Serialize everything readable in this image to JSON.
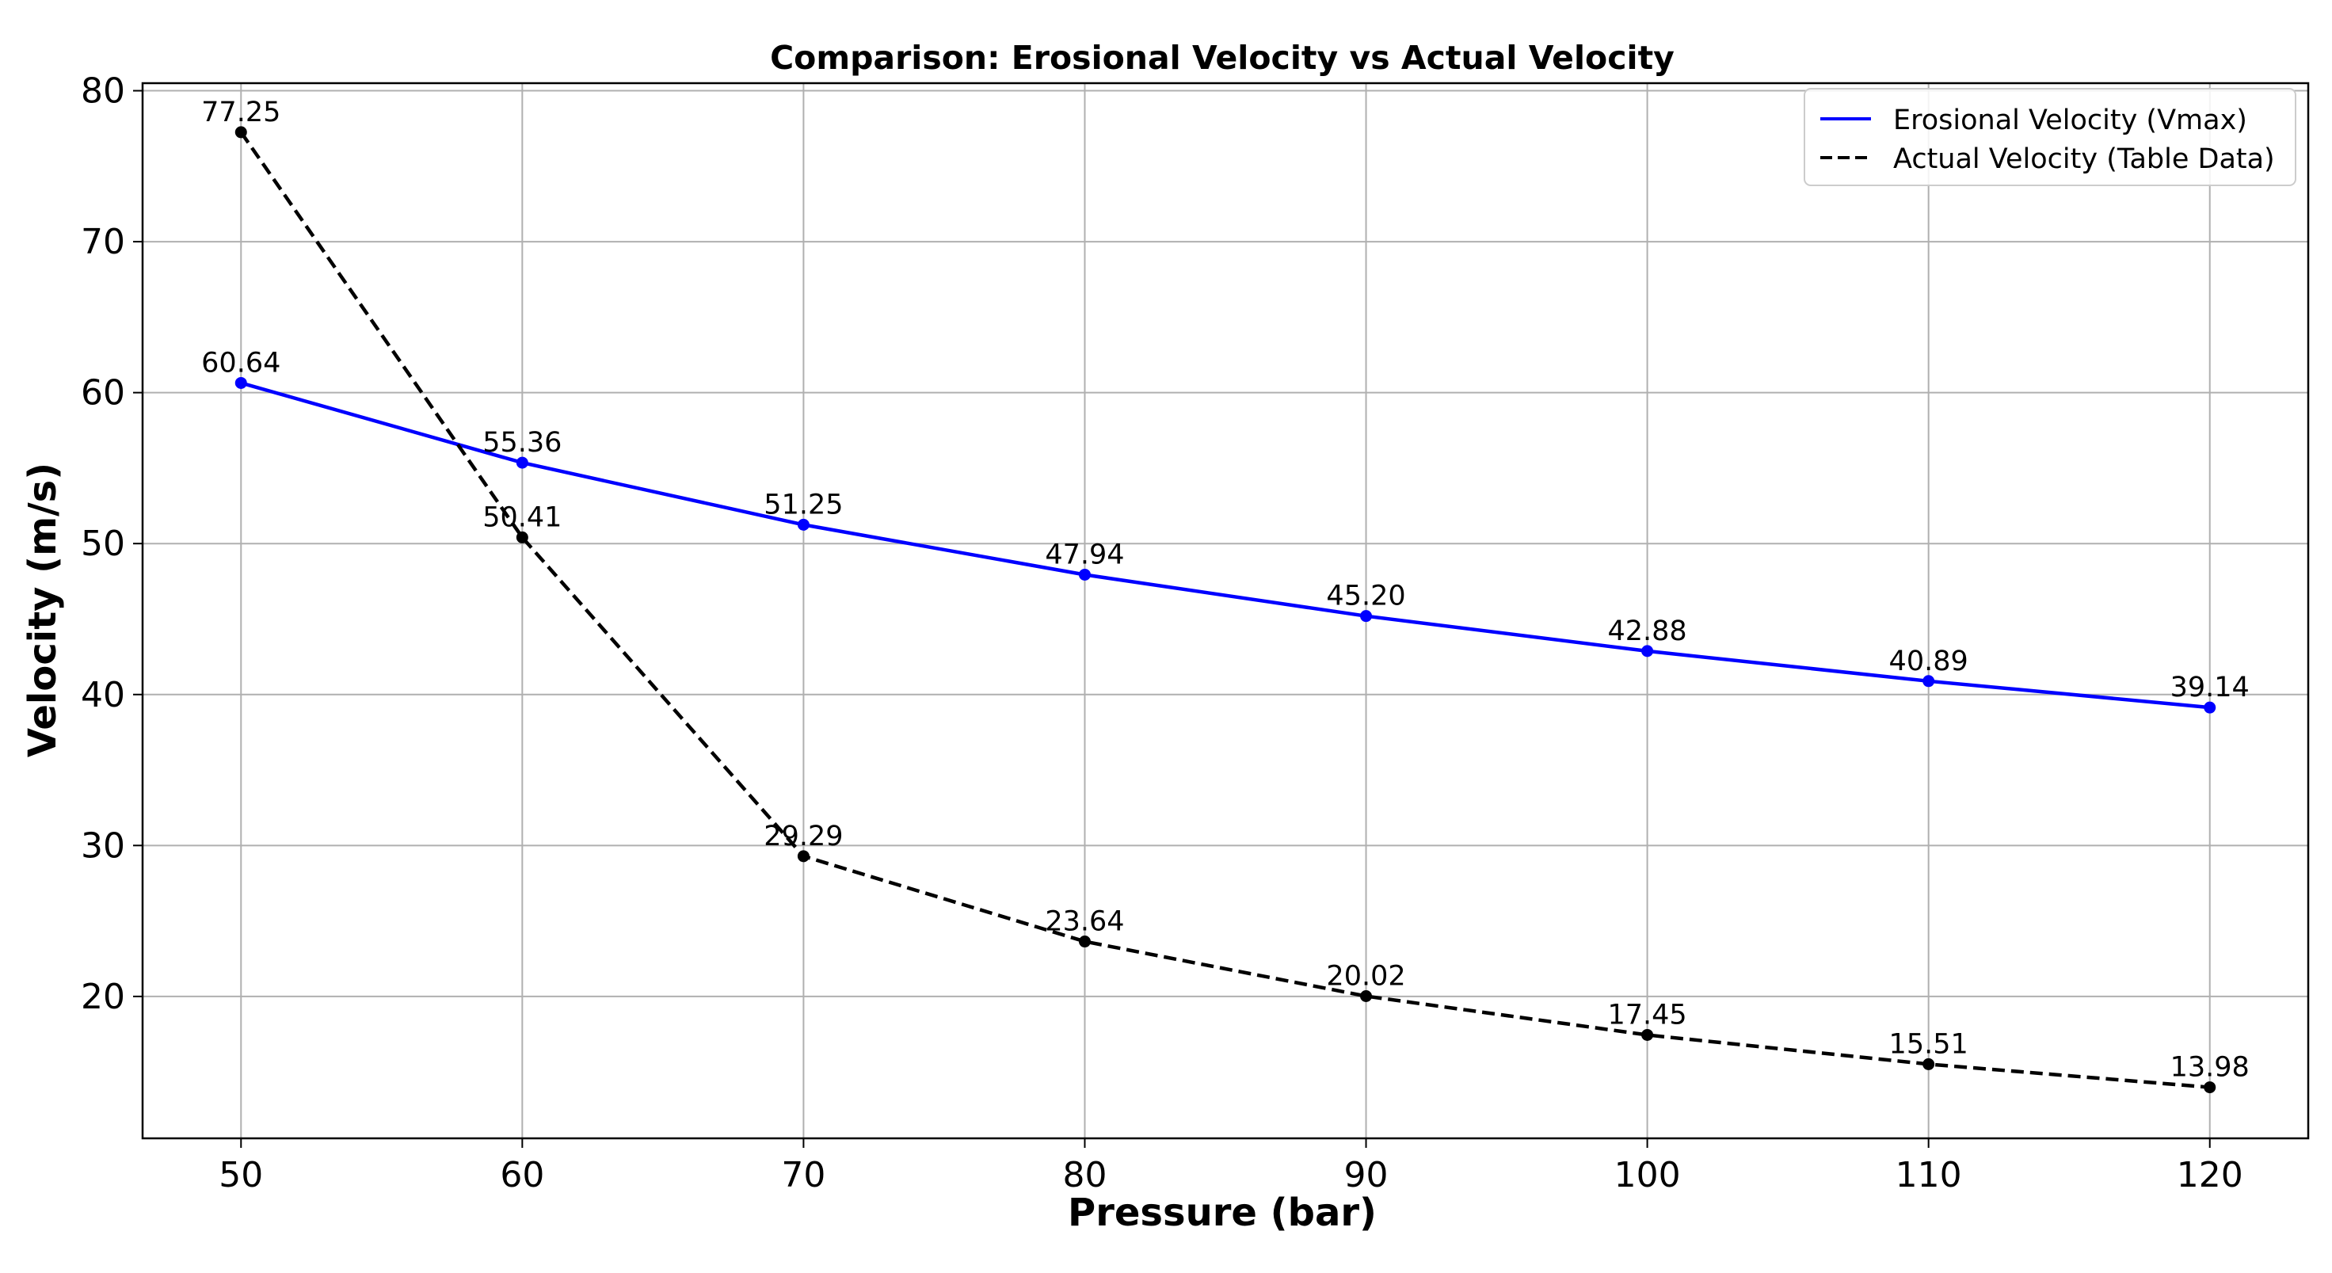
{
  "chart_data": {
    "type": "line",
    "title": "Comparison: Erosional Velocity vs Actual Velocity",
    "xlabel": "Pressure (bar)",
    "ylabel": "Velocity (m/s)",
    "x": [
      50,
      60,
      70,
      80,
      90,
      100,
      110,
      120
    ],
    "xlim": [
      46.5,
      123.5
    ],
    "ylim": [
      10.6,
      80.5
    ],
    "xticks": [
      50,
      60,
      70,
      80,
      90,
      100,
      110,
      120
    ],
    "yticks": [
      20,
      30,
      40,
      50,
      60,
      70,
      80
    ],
    "grid": true,
    "legend_position": "top-right",
    "series": [
      {
        "name": "Erosional Velocity (Vmax)",
        "values": [
          60.64,
          55.36,
          51.25,
          47.94,
          45.2,
          42.88,
          40.89,
          39.14
        ],
        "labels": [
          "60.64",
          "55.36",
          "51.25",
          "47.94",
          "45.20",
          "42.88",
          "40.89",
          "39.14"
        ],
        "color": "#0000ff",
        "style": "solid"
      },
      {
        "name": "Actual Velocity (Table Data)",
        "values": [
          77.25,
          50.41,
          29.29,
          23.64,
          20.02,
          17.45,
          15.51,
          13.98
        ],
        "labels": [
          "77.25",
          "50.41",
          "29.29",
          "23.64",
          "20.02",
          "17.45",
          "15.51",
          "13.98"
        ],
        "color": "#000000",
        "style": "dashed"
      }
    ]
  }
}
